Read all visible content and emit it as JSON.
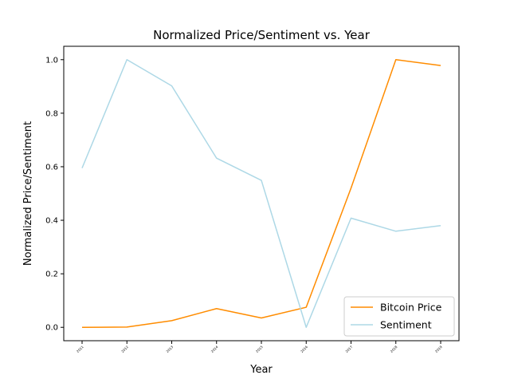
{
  "chart_data": {
    "type": "line",
    "title": "Normalized Price/Sentiment vs. Year",
    "xlabel": "Year",
    "ylabel": "Normalized Price/Sentiment",
    "x": [
      "2011",
      "2012",
      "2013",
      "2014",
      "2015",
      "2016",
      "2017",
      "2018",
      "2019"
    ],
    "ylim": [
      -0.05,
      1.05
    ],
    "yticks": [
      "0.0",
      "0.2",
      "0.4",
      "0.6",
      "0.8",
      "1.0"
    ],
    "grid": false,
    "legend_position": "bottom-right",
    "series": [
      {
        "name": "Bitcoin Price",
        "color": "#ff8c00",
        "values": [
          0.0,
          0.001,
          0.025,
          0.07,
          0.035,
          0.075,
          0.52,
          1.0,
          0.978
        ]
      },
      {
        "name": "Sentiment",
        "color": "#add8e6",
        "values": [
          0.595,
          1.0,
          0.902,
          0.632,
          0.549,
          0.0,
          0.408,
          0.359,
          0.38
        ]
      }
    ]
  }
}
